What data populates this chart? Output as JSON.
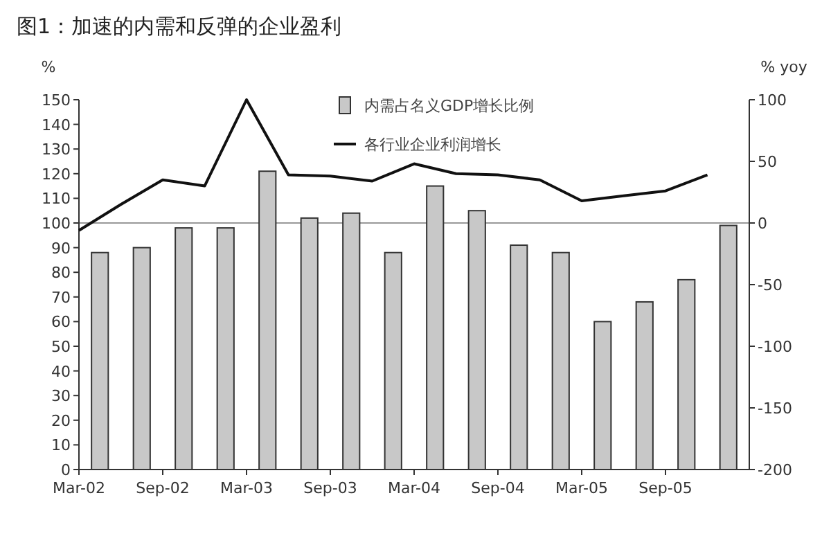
{
  "chart_data": {
    "type": "bar",
    "title": "图1：加速的内需和反弹的企业盈利",
    "ylabel": "%",
    "y2label": "% yoy",
    "categories": [
      "Mar-02",
      null,
      "Sep-02",
      null,
      "Mar-03",
      null,
      "Sep-03",
      null,
      "Mar-04",
      null,
      "Sep-04",
      null,
      "Mar-05",
      null,
      "Sep-05",
      null
    ],
    "series": [
      {
        "name": "内需占名义GDP增长比例",
        "color": "#c8c8c8",
        "values": [
          88,
          90,
          98,
          98,
          121,
          102,
          104,
          88,
          115,
          105,
          91,
          88,
          60,
          68,
          77,
          99
        ]
      },
      {
        "name": "各行业企业利润增长",
        "type": "line",
        "axis": "y2",
        "color": "#111111",
        "values": [
          -6,
          15,
          35,
          30,
          100,
          39,
          38,
          34,
          48,
          40,
          39,
          35,
          18,
          22,
          26,
          39
        ]
      }
    ],
    "ylim": [
      0,
      150
    ],
    "yticks": [
      0,
      10,
      20,
      30,
      40,
      50,
      60,
      70,
      80,
      90,
      100,
      110,
      120,
      130,
      140,
      150
    ],
    "y2lim": [
      -200,
      100
    ],
    "y2ticks": [
      -200,
      -150,
      -100,
      -50,
      0,
      50,
      100
    ],
    "ref_lines": [
      {
        "axis": "y2",
        "value": 0,
        "color": "#999999"
      }
    ],
    "legend": "top",
    "grid": false
  }
}
